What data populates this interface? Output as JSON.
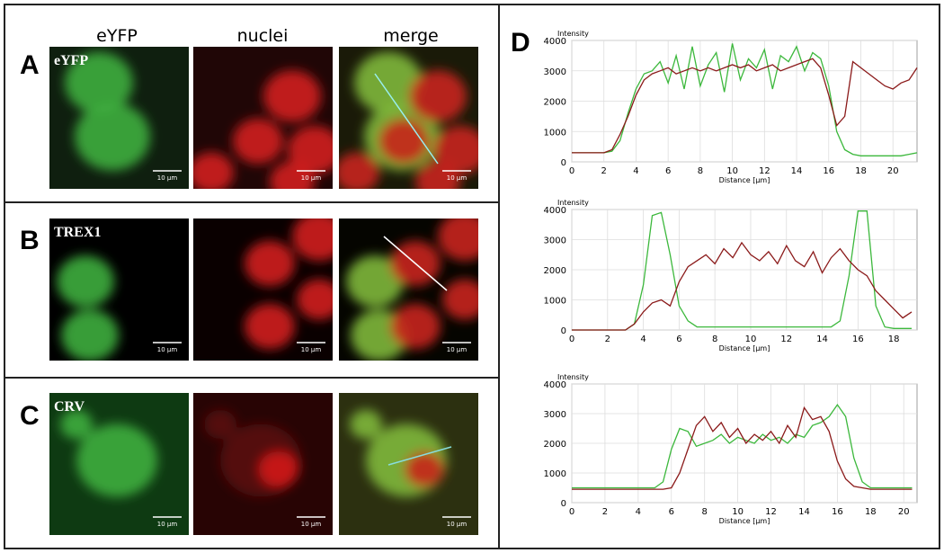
{
  "figure": {
    "columns": [
      "eYFP",
      "nuclei",
      "merge"
    ],
    "panels": [
      {
        "letter": "A",
        "inset": "eYFP",
        "scale_labels": [
          "10 µm",
          "10 µm",
          "10 µm"
        ]
      },
      {
        "letter": "B",
        "inset": "TREX1",
        "scale_labels": [
          "10 µm",
          "10 µm",
          "10 µm"
        ]
      },
      {
        "letter": "C",
        "inset": "CRV",
        "scale_labels": [
          "10 µm",
          "10 µm",
          "10 µm"
        ]
      }
    ],
    "chart_panel_letter": "D"
  },
  "chart_data": [
    {
      "type": "line",
      "y_label": "Intensity",
      "x_label": "Distance [µm]",
      "xlim": [
        0,
        21.5
      ],
      "ylim": [
        0,
        4000
      ],
      "grid": true,
      "xticks": [
        0,
        2,
        4,
        6,
        8,
        10,
        12,
        14,
        16,
        18,
        20
      ],
      "yticks": [
        0,
        1000,
        2000,
        3000,
        4000
      ],
      "x": [
        0,
        0.5,
        1,
        1.5,
        2,
        2.5,
        3,
        3.5,
        4,
        4.5,
        5,
        5.5,
        6,
        6.5,
        7,
        7.5,
        8,
        8.5,
        9,
        9.5,
        10,
        10.5,
        11,
        11.5,
        12,
        12.5,
        13,
        13.5,
        14,
        14.5,
        15,
        15.5,
        16,
        16.5,
        17,
        17.5,
        18,
        18.5,
        19,
        19.5,
        20,
        20.5,
        21,
        21.5
      ],
      "series": [
        {
          "color": "#3cb83c",
          "values": [
            300,
            300,
            300,
            300,
            300,
            350,
            700,
            1600,
            2400,
            2900,
            3000,
            3300,
            2600,
            3500,
            2400,
            3800,
            2500,
            3200,
            3600,
            2300,
            3900,
            2700,
            3400,
            3100,
            3700,
            2400,
            3500,
            3300,
            3800,
            3000,
            3600,
            3400,
            2500,
            1000,
            400,
            250,
            200,
            200,
            200,
            200,
            200,
            200,
            250,
            300
          ]
        },
        {
          "color": "#8b1a1a",
          "values": [
            300,
            300,
            300,
            300,
            300,
            400,
            900,
            1500,
            2200,
            2700,
            2900,
            3000,
            3100,
            2900,
            3000,
            3100,
            3000,
            3100,
            3000,
            3100,
            3200,
            3100,
            3200,
            3000,
            3100,
            3200,
            3000,
            3100,
            3200,
            3300,
            3400,
            3100,
            2200,
            1200,
            1500,
            3300,
            3100,
            2900,
            2700,
            2500,
            2400,
            2600,
            2700,
            3100
          ]
        }
      ]
    },
    {
      "type": "line",
      "y_label": "Intensity",
      "x_label": "Distance [µm]",
      "xlim": [
        0,
        19.3
      ],
      "ylim": [
        0,
        4000
      ],
      "grid": true,
      "xticks": [
        0,
        2,
        4,
        6,
        8,
        10,
        12,
        14,
        16,
        18
      ],
      "yticks": [
        0,
        1000,
        2000,
        3000,
        4000
      ],
      "x": [
        0,
        0.5,
        1,
        1.5,
        2,
        2.5,
        3,
        3.5,
        4,
        4.5,
        5,
        5.5,
        6,
        6.5,
        7,
        7.5,
        8,
        8.5,
        9,
        9.5,
        10,
        10.5,
        11,
        11.5,
        12,
        12.5,
        13,
        13.5,
        14,
        14.5,
        15,
        15.5,
        16,
        16.5,
        17,
        17.5,
        18,
        18.5,
        19
      ],
      "series": [
        {
          "color": "#3cb83c",
          "values": [
            0,
            0,
            0,
            0,
            0,
            0,
            0,
            200,
            1500,
            3800,
            3900,
            2500,
            800,
            300,
            100,
            100,
            100,
            100,
            100,
            100,
            100,
            100,
            100,
            100,
            100,
            100,
            100,
            100,
            100,
            100,
            300,
            1800,
            3950,
            3950,
            800,
            100,
            50,
            50,
            50
          ]
        },
        {
          "color": "#8b1a1a",
          "values": [
            0,
            0,
            0,
            0,
            0,
            0,
            0,
            200,
            600,
            900,
            1000,
            800,
            1600,
            2100,
            2300,
            2500,
            2200,
            2700,
            2400,
            2900,
            2500,
            2300,
            2600,
            2200,
            2800,
            2300,
            2100,
            2600,
            1900,
            2400,
            2700,
            2300,
            2000,
            1800,
            1300,
            1000,
            700,
            400,
            600
          ]
        }
      ]
    },
    {
      "type": "line",
      "y_label": "Intensity",
      "x_label": "Distance [µm]",
      "xlim": [
        0,
        20.8
      ],
      "ylim": [
        0,
        4000
      ],
      "grid": true,
      "xticks": [
        0,
        2,
        4,
        6,
        8,
        10,
        12,
        14,
        16,
        18,
        20
      ],
      "yticks": [
        0,
        1000,
        2000,
        3000,
        4000
      ],
      "x": [
        0,
        0.5,
        1,
        1.5,
        2,
        2.5,
        3,
        3.5,
        4,
        4.5,
        5,
        5.5,
        6,
        6.5,
        7,
        7.5,
        8,
        8.5,
        9,
        9.5,
        10,
        10.5,
        11,
        11.5,
        12,
        12.5,
        13,
        13.5,
        14,
        14.5,
        15,
        15.5,
        16,
        16.5,
        17,
        17.5,
        18,
        18.5,
        19,
        19.5,
        20,
        20.5
      ],
      "series": [
        {
          "color": "#3cb83c",
          "values": [
            500,
            500,
            500,
            500,
            500,
            500,
            500,
            500,
            500,
            500,
            500,
            700,
            1800,
            2500,
            2400,
            1900,
            2000,
            2100,
            2300,
            2000,
            2200,
            2100,
            2000,
            2300,
            2100,
            2200,
            2000,
            2300,
            2200,
            2600,
            2700,
            2900,
            3300,
            2900,
            1500,
            700,
            500,
            500,
            500,
            500,
            500,
            500
          ]
        },
        {
          "color": "#8b1a1a",
          "values": [
            450,
            450,
            450,
            450,
            450,
            450,
            450,
            450,
            450,
            450,
            450,
            450,
            500,
            1000,
            1800,
            2600,
            2900,
            2400,
            2700,
            2200,
            2500,
            2000,
            2300,
            2100,
            2400,
            2000,
            2600,
            2200,
            3200,
            2800,
            2900,
            2400,
            1400,
            800,
            550,
            500,
            450,
            450,
            450,
            450,
            450,
            450
          ]
        }
      ]
    }
  ]
}
